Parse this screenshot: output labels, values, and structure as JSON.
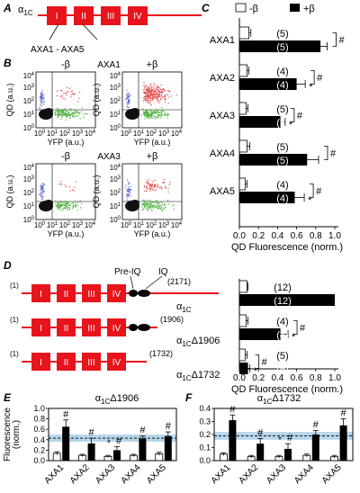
{
  "colors": {
    "construct": "#e8141c",
    "bar_beta": "#000000",
    "bar_nobeta": "#ffffff",
    "band": "#b7d6ea",
    "dots_red": "#e05050",
    "dots_green": "#4caf3c",
    "dots_black": "#111111"
  },
  "panels": {
    "A": "A",
    "B": "B",
    "C": "C",
    "D": "D",
    "E": "E",
    "F": "F"
  },
  "panel_a": {
    "subunit_prefix": "α",
    "subunit_sub": "1C",
    "domains": [
      "I",
      "II",
      "III",
      "IV"
    ],
    "range_label": "AXA1 - AXA5"
  },
  "panel_b": {
    "cond_minus": "-β",
    "cond_plus": "+β",
    "rows": [
      {
        "name": "AXA1"
      },
      {
        "name": "AXA3"
      }
    ],
    "y_axis": "QD (a.u.)",
    "x_axis": "YFP (a.u.)",
    "ticks": [
      "10^0",
      "10^1",
      "10^2",
      "10^3",
      "10^4"
    ]
  },
  "legend": {
    "minus": "-β",
    "plus": "+β"
  },
  "chart_data": [
    {
      "id": "C",
      "type": "bar",
      "orientation": "horizontal",
      "categories": [
        "AXA1",
        "AXA2",
        "AXA3",
        "AXA4",
        "AXA5"
      ],
      "series": [
        {
          "name": "-β",
          "values": [
            0.1,
            0.08,
            0.07,
            0.08,
            0.06
          ],
          "errors": [
            0.02,
            0.02,
            0.02,
            0.03,
            0.02
          ],
          "n": [
            "(5)",
            "(4)",
            "(5)",
            "(5)",
            "(4)"
          ]
        },
        {
          "name": "+β",
          "values": [
            0.85,
            0.6,
            0.43,
            0.71,
            0.58
          ],
          "errors": [
            0.07,
            0.09,
            0.05,
            0.12,
            0.1
          ],
          "n": [
            "(5)",
            "(4)",
            "(5)",
            "(5)",
            "(4)"
          ]
        }
      ],
      "asterisk": [
        false,
        true,
        true,
        false,
        true
      ],
      "hash": [
        "#",
        "#",
        "#",
        "#",
        "#"
      ],
      "xlabel": "QD Fluorescence (norm.)",
      "xlim": [
        0,
        1.0
      ],
      "xticks": [
        "0.0",
        "0.2",
        "0.4",
        "0.6",
        "0.8",
        "1.0"
      ]
    },
    {
      "id": "D",
      "type": "bar",
      "orientation": "horizontal",
      "categories": [
        "α1C",
        "α1CΔ1906",
        "α1CΔ1732"
      ],
      "series": [
        {
          "name": "-β",
          "values": [
            0.08,
            0.07,
            0.06
          ],
          "errors": [
            0.01,
            0.02,
            0.02
          ],
          "n": [
            "(12)",
            "(4)",
            "(5)"
          ]
        },
        {
          "name": "+β",
          "values": [
            1.0,
            0.43,
            0.09
          ],
          "errors": [
            0.0,
            0.08,
            0.02
          ],
          "n": [
            "(12)",
            "(4)",
            "(5)"
          ]
        }
      ],
      "asterisk": [
        false,
        true,
        true
      ],
      "hash": [
        "",
        "#",
        "#"
      ],
      "xlabel": "QD Fluorescence (norm.)",
      "xlim": [
        0,
        1.0
      ],
      "xticks": [
        "0.0",
        "0.2",
        "0.4",
        "0.6",
        "0.8",
        "1.0"
      ]
    },
    {
      "id": "E",
      "type": "bar",
      "title_prefix": "α",
      "title_sub": "1C",
      "title_suffix": "Δ1906",
      "categories": [
        "AXA1",
        "AXA2",
        "AXA3",
        "AXA4",
        "AXA5"
      ],
      "series": [
        {
          "name": "-β",
          "values": [
            0.14,
            0.1,
            0.08,
            0.1,
            0.13
          ],
          "errors": [
            0.03,
            0.02,
            0.02,
            0.02,
            0.03
          ]
        },
        {
          "name": "+β",
          "values": [
            0.65,
            0.33,
            0.2,
            0.42,
            0.47
          ],
          "errors": [
            0.13,
            0.1,
            0.07,
            0.05,
            0.08
          ]
        }
      ],
      "hash": [
        "#",
        "#",
        "#",
        "#",
        "#"
      ],
      "asterisk": [
        false,
        false,
        true,
        false,
        false
      ],
      "reference_band": [
        0.36,
        0.5
      ],
      "reference_line": 0.43,
      "ylabel_line1": "Fluorescence",
      "ylabel_line2": "(norm.)",
      "ylim": [
        0,
        1.0
      ],
      "yticks": [
        "0.0",
        "0.2",
        "0.4",
        "0.6",
        "0.8",
        "1.0"
      ]
    },
    {
      "id": "F",
      "type": "bar",
      "title_prefix": "α",
      "title_sub": "1C",
      "title_suffix": "Δ1732",
      "categories": [
        "AXA1",
        "AXA2",
        "AXA3",
        "AXA4",
        "AXA5"
      ],
      "series": [
        {
          "name": "-β",
          "values": [
            0.05,
            0.03,
            0.03,
            0.04,
            0.03
          ],
          "errors": [
            0.01,
            0.01,
            0.01,
            0.01,
            0.01
          ]
        },
        {
          "name": "+β",
          "values": [
            0.31,
            0.13,
            0.09,
            0.2,
            0.27
          ],
          "errors": [
            0.04,
            0.04,
            0.04,
            0.03,
            0.05
          ]
        }
      ],
      "hash": [
        "#",
        "#",
        "#",
        "#",
        "#"
      ],
      "asterisk": [
        false,
        false,
        true,
        false,
        false
      ],
      "reference_band": [
        0.16,
        0.22
      ],
      "reference_line": 0.19,
      "ylim": [
        0,
        0.4
      ],
      "yticks": [
        "0.0",
        "0.1",
        "0.2",
        "0.3",
        "0.4"
      ]
    }
  ],
  "panel_d": {
    "constructs": [
      {
        "label_prefix": "α",
        "label_sub": "1C",
        "label_suffix": "",
        "start": "(1)",
        "end": "(2171)"
      },
      {
        "label_prefix": "α",
        "label_sub": "1C",
        "label_suffix": "Δ1906",
        "start": "(1)",
        "end": "(1906)"
      },
      {
        "label_prefix": "α",
        "label_sub": "1C",
        "label_suffix": "Δ1732",
        "start": "(1)",
        "end": "(1732)"
      }
    ],
    "domains": [
      "I",
      "II",
      "III",
      "IV"
    ],
    "pre_iq": "Pre-IQ",
    "iq": "IQ"
  },
  "symbols": {
    "asterisk": "*",
    "hash": "#"
  }
}
